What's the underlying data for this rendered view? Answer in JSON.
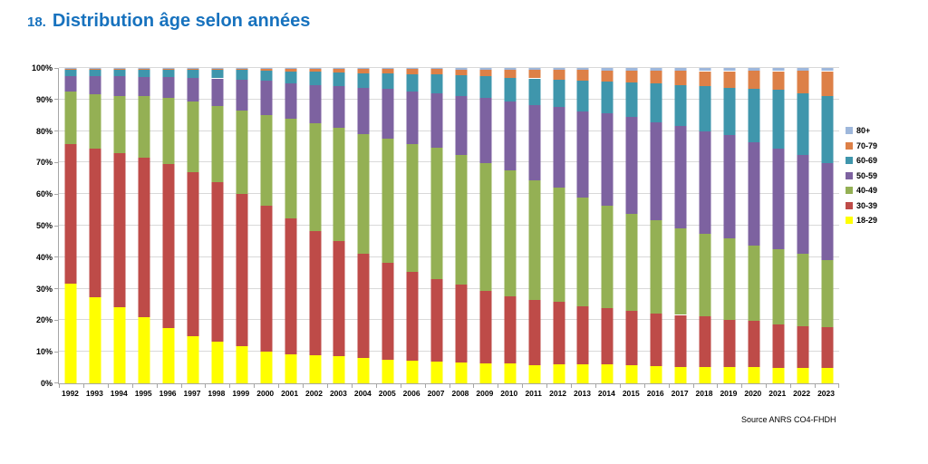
{
  "title": {
    "number": "18.",
    "text": "Distribution âge selon années"
  },
  "source": "Source ANRS CO4-FHDH",
  "colors": {
    "title_blue": "#1772be",
    "gridline": "#d9d9d9",
    "axis": "#a6a6a6"
  },
  "chart_data": {
    "type": "bar",
    "stacked": true,
    "percent_stacked": true,
    "title": "18. Distribution âge selon années",
    "xlabel": "",
    "ylabel": "",
    "ylim": [
      0,
      100
    ],
    "grid": true,
    "legend_position": "right",
    "legend_order": [
      "80+",
      "70-79",
      "60-69",
      "50-59",
      "40-49",
      "30-39",
      "18-29"
    ],
    "yticks": [
      "0%",
      "10%",
      "20%",
      "30%",
      "40%",
      "50%",
      "60%",
      "70%",
      "80%",
      "90%",
      "100%"
    ],
    "categories": [
      "1992",
      "1993",
      "1994",
      "1995",
      "1996",
      "1997",
      "1998",
      "1999",
      "2000",
      "2001",
      "2002",
      "2003",
      "2004",
      "2005",
      "2006",
      "2007",
      "2008",
      "2009",
      "2010",
      "2011",
      "2012",
      "2013",
      "2014",
      "2015",
      "2016",
      "2017",
      "2018",
      "2019",
      "2020",
      "2021",
      "2022",
      "2023"
    ],
    "series": [
      {
        "name": "18-29",
        "color": "#ffff00",
        "values": [
          31.5,
          27.3,
          24.0,
          21.0,
          17.5,
          15.0,
          13.3,
          11.7,
          10.2,
          9.2,
          8.9,
          8.6,
          8.1,
          7.6,
          7.1,
          6.9,
          6.7,
          6.4,
          6.4,
          5.8,
          5.9,
          5.9,
          5.9,
          5.7,
          5.5,
          5.2,
          5.2,
          5.2,
          5.2,
          4.8,
          4.9,
          4.8
        ]
      },
      {
        "name": "30-39",
        "color": "#be4b48",
        "values": [
          44.5,
          47.0,
          49.0,
          50.5,
          52.0,
          52.0,
          50.5,
          48.3,
          46.0,
          43.2,
          39.4,
          36.4,
          33.0,
          30.5,
          28.3,
          26.2,
          24.5,
          22.9,
          21.2,
          20.6,
          20.0,
          18.4,
          17.9,
          17.2,
          16.6,
          16.5,
          16.2,
          14.8,
          14.5,
          13.8,
          13.2,
          13.0
        ]
      },
      {
        "name": "40-49",
        "color": "#94b054",
        "values": [
          16.5,
          17.3,
          18.0,
          19.5,
          21.0,
          22.5,
          24.2,
          26.5,
          29.0,
          31.4,
          34.1,
          36.1,
          37.9,
          39.5,
          40.6,
          41.5,
          41.2,
          40.4,
          39.8,
          38.1,
          36.2,
          34.7,
          32.6,
          30.9,
          29.5,
          27.5,
          25.9,
          26.0,
          24.1,
          23.8,
          22.9,
          21.2
        ]
      },
      {
        "name": "50-59",
        "color": "#7d62a0",
        "values": [
          5.0,
          5.8,
          6.3,
          6.2,
          6.5,
          7.3,
          8.7,
          9.7,
          10.7,
          11.2,
          12.2,
          13.2,
          14.8,
          15.7,
          16.6,
          17.3,
          18.8,
          20.8,
          21.9,
          23.6,
          25.5,
          27.2,
          29.1,
          30.8,
          31.3,
          32.5,
          32.7,
          32.6,
          32.6,
          32.1,
          31.4,
          30.7
        ]
      },
      {
        "name": "60-69",
        "color": "#3f96ac",
        "values": [
          1.8,
          2.0,
          2.1,
          2.2,
          2.4,
          2.6,
          2.7,
          3.1,
          3.3,
          3.9,
          4.2,
          4.3,
          4.5,
          4.9,
          5.4,
          6.0,
          6.5,
          6.9,
          7.6,
          8.6,
          8.8,
          9.7,
          10.2,
          10.8,
          12.1,
          12.8,
          14.4,
          15.0,
          16.9,
          18.5,
          19.5,
          21.4
        ]
      },
      {
        "name": "70-79",
        "color": "#dd8047",
        "values": [
          0.5,
          0.4,
          0.4,
          0.4,
          0.4,
          0.4,
          0.4,
          0.5,
          0.6,
          0.8,
          0.9,
          1.1,
          1.4,
          1.5,
          1.6,
          1.7,
          1.8,
          2.1,
          2.5,
          2.7,
          3.0,
          3.4,
          3.5,
          3.8,
          4.1,
          4.5,
          4.6,
          5.4,
          5.9,
          6.0,
          7.3,
          7.9
        ]
      },
      {
        "name": "80+",
        "color": "#9eb7db",
        "values": [
          0.2,
          0.2,
          0.2,
          0.2,
          0.2,
          0.2,
          0.2,
          0.2,
          0.2,
          0.3,
          0.3,
          0.3,
          0.3,
          0.3,
          0.4,
          0.4,
          0.5,
          0.5,
          0.6,
          0.6,
          0.6,
          0.7,
          0.8,
          0.8,
          0.9,
          1.0,
          1.0,
          1.0,
          0.8,
          1.0,
          0.8,
          1.0
        ]
      }
    ]
  }
}
